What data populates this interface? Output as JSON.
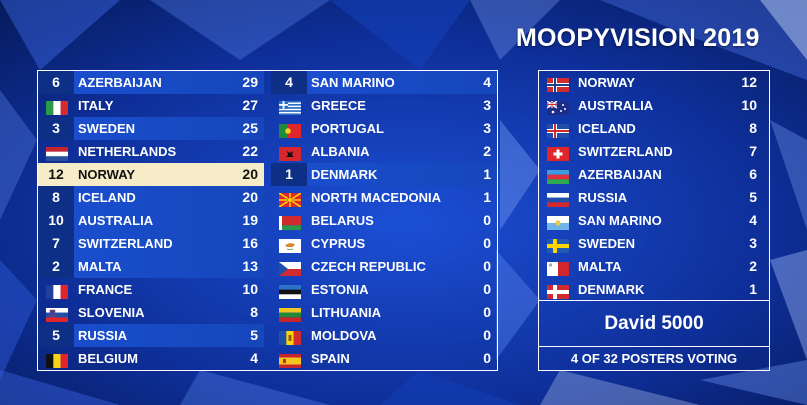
{
  "title": "MOOPYVISION 2019",
  "scoreboard_left": [
    {
      "recv": "6",
      "name": "AZERBAIJAN",
      "score": "29",
      "flag": "az",
      "hl": true
    },
    {
      "recv": "",
      "name": "ITALY",
      "score": "27",
      "flag": "it",
      "hl": false
    },
    {
      "recv": "3",
      "name": "SWEDEN",
      "score": "25",
      "flag": "se",
      "hl": true
    },
    {
      "recv": "",
      "name": "NETHERLANDS",
      "score": "22",
      "flag": "nl",
      "hl": false
    },
    {
      "recv": "12",
      "name": "NORWAY",
      "score": "20",
      "flag": "no",
      "hl": false,
      "gold": true
    },
    {
      "recv": "8",
      "name": "ICELAND",
      "score": "20",
      "flag": "is",
      "hl": true
    },
    {
      "recv": "10",
      "name": "AUSTRALIA",
      "score": "19",
      "flag": "au",
      "hl": true
    },
    {
      "recv": "7",
      "name": "SWITZERLAND",
      "score": "16",
      "flag": "ch",
      "hl": true
    },
    {
      "recv": "2",
      "name": "MALTA",
      "score": "13",
      "flag": "mt",
      "hl": true
    },
    {
      "recv": "",
      "name": "FRANCE",
      "score": "10",
      "flag": "fr",
      "hl": false
    },
    {
      "recv": "",
      "name": "SLOVENIA",
      "score": "8",
      "flag": "si",
      "hl": false
    },
    {
      "recv": "5",
      "name": "RUSSIA",
      "score": "5",
      "flag": "ru",
      "hl": true
    },
    {
      "recv": "",
      "name": "BELGIUM",
      "score": "4",
      "flag": "be",
      "hl": false
    }
  ],
  "scoreboard_mid": [
    {
      "recv": "4",
      "name": "SAN MARINO",
      "score": "4",
      "flag": "sm",
      "hl": true
    },
    {
      "recv": "",
      "name": "GREECE",
      "score": "3",
      "flag": "gr",
      "hl": false
    },
    {
      "recv": "",
      "name": "PORTUGAL",
      "score": "3",
      "flag": "pt",
      "hl": false
    },
    {
      "recv": "",
      "name": "ALBANIA",
      "score": "2",
      "flag": "al",
      "hl": false
    },
    {
      "recv": "1",
      "name": "DENMARK",
      "score": "1",
      "flag": "dk",
      "hl": true
    },
    {
      "recv": "",
      "name": "NORTH MACEDONIA",
      "score": "1",
      "flag": "mk",
      "hl": false
    },
    {
      "recv": "",
      "name": "BELARUS",
      "score": "0",
      "flag": "by",
      "hl": false
    },
    {
      "recv": "",
      "name": "CYPRUS",
      "score": "0",
      "flag": "cy",
      "hl": false
    },
    {
      "recv": "",
      "name": "CZECH REPUBLIC",
      "score": "0",
      "flag": "cz",
      "hl": false
    },
    {
      "recv": "",
      "name": "ESTONIA",
      "score": "0",
      "flag": "ee",
      "hl": false
    },
    {
      "recv": "",
      "name": "LITHUANIA",
      "score": "0",
      "flag": "lt",
      "hl": false
    },
    {
      "recv": "",
      "name": "MOLDOVA",
      "score": "0",
      "flag": "md",
      "hl": false
    },
    {
      "recv": "",
      "name": "SPAIN",
      "score": "0",
      "flag": "es",
      "hl": false
    }
  ],
  "votes": [
    {
      "name": "NORWAY",
      "score": "12",
      "flag": "no"
    },
    {
      "name": "AUSTRALIA",
      "score": "10",
      "flag": "au"
    },
    {
      "name": "ICELAND",
      "score": "8",
      "flag": "is"
    },
    {
      "name": "SWITZERLAND",
      "score": "7",
      "flag": "ch"
    },
    {
      "name": "AZERBAIJAN",
      "score": "6",
      "flag": "az"
    },
    {
      "name": "RUSSIA",
      "score": "5",
      "flag": "ru"
    },
    {
      "name": "SAN MARINO",
      "score": "4",
      "flag": "sm"
    },
    {
      "name": "SWEDEN",
      "score": "3",
      "flag": "se"
    },
    {
      "name": "MALTA",
      "score": "2",
      "flag": "mt"
    },
    {
      "name": "DENMARK",
      "score": "1",
      "flag": "dk"
    }
  ],
  "voter": "David 5000",
  "voting_status": "4 OF 32 POSTERS VOTING",
  "colors": {
    "highlight": "#1b4fd0",
    "gold": "#f6ecc8",
    "background": "#0b2a8f"
  }
}
